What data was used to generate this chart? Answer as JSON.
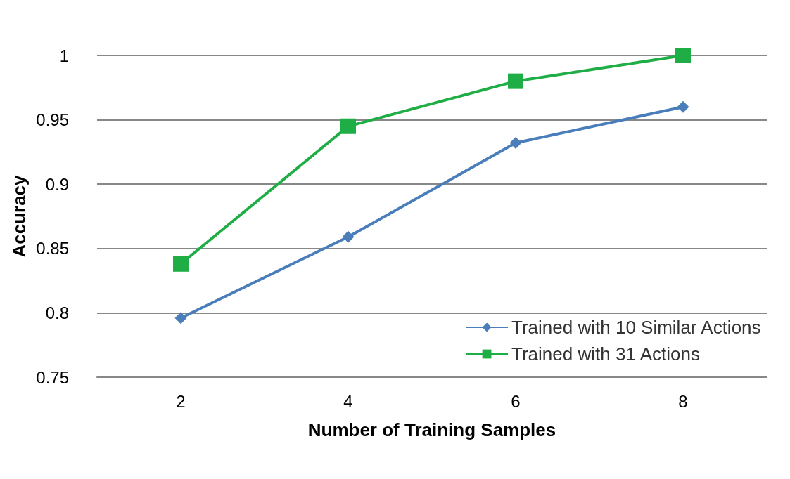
{
  "chart_data": {
    "type": "line",
    "xlabel": "Number of Training Samples",
    "ylabel": "Accuracy",
    "categories": [
      "2",
      "4",
      "6",
      "8"
    ],
    "series": [
      {
        "name": "Trained with 10 Similar Actions",
        "color": "#4a7ebb",
        "marker": "diamond",
        "values": [
          0.796,
          0.859,
          0.932,
          0.96
        ]
      },
      {
        "name": "Trained with 31 Actions",
        "color": "#1fad45",
        "marker": "square",
        "values": [
          0.838,
          0.945,
          0.98,
          1.0
        ]
      }
    ],
    "ylim": [
      0.75,
      1
    ],
    "yticks": [
      0.75,
      0.8,
      0.85,
      0.9,
      0.95,
      1
    ],
    "grid": "y",
    "legend": "bottom right",
    "line_style": "solid"
  }
}
